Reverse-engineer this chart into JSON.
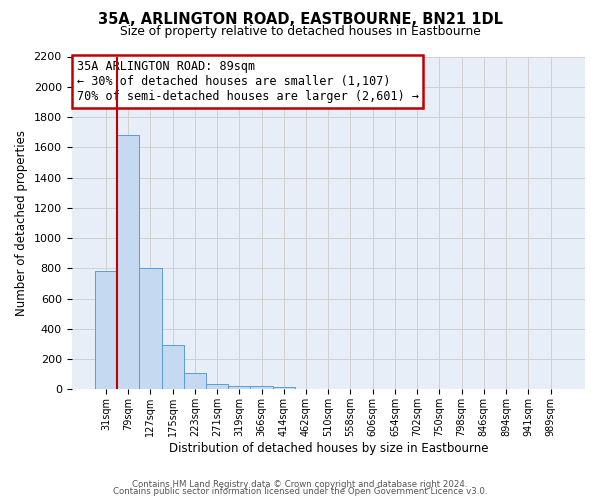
{
  "title": "35A, ARLINGTON ROAD, EASTBOURNE, BN21 1DL",
  "subtitle": "Size of property relative to detached houses in Eastbourne",
  "xlabel": "Distribution of detached houses by size in Eastbourne",
  "ylabel": "Number of detached properties",
  "bar_labels": [
    "31sqm",
    "79sqm",
    "127sqm",
    "175sqm",
    "223sqm",
    "271sqm",
    "319sqm",
    "366sqm",
    "414sqm",
    "462sqm",
    "510sqm",
    "558sqm",
    "606sqm",
    "654sqm",
    "702sqm",
    "750sqm",
    "798sqm",
    "846sqm",
    "894sqm",
    "941sqm",
    "989sqm"
  ],
  "bar_values": [
    780,
    1680,
    800,
    295,
    110,
    35,
    20,
    20,
    15,
    0,
    5,
    0,
    0,
    0,
    0,
    0,
    0,
    0,
    0,
    0,
    0
  ],
  "bar_color": "#c5d9f0",
  "bar_edge_color": "#5b9bd5",
  "vline_color": "#c00000",
  "annotation_text": "35A ARLINGTON ROAD: 89sqm\n← 30% of detached houses are smaller (1,107)\n70% of semi-detached houses are larger (2,601) →",
  "annotation_box_color": "white",
  "annotation_box_edge": "#c00000",
  "ylim": [
    0,
    2200
  ],
  "yticks": [
    0,
    200,
    400,
    600,
    800,
    1000,
    1200,
    1400,
    1600,
    1800,
    2000,
    2200
  ],
  "grid_color": "#d0d0d0",
  "background_color": "#e8eef7",
  "footer_line1": "Contains HM Land Registry data © Crown copyright and database right 2024.",
  "footer_line2": "Contains public sector information licensed under the Open Government Licence v3.0."
}
